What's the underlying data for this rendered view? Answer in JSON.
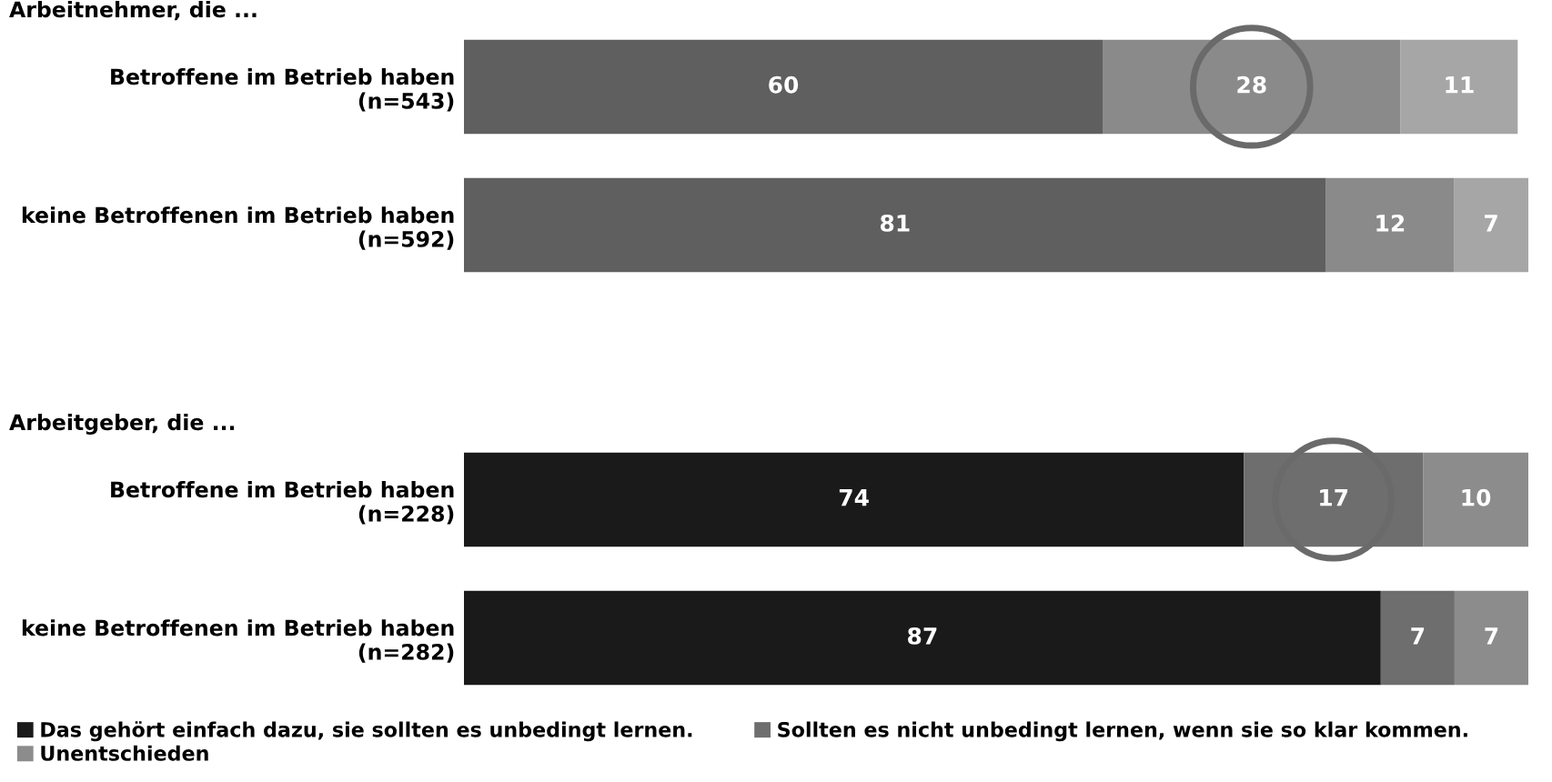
{
  "chart_data": [
    {
      "type": "bar",
      "orientation": "horizontal",
      "stacked": true,
      "title": "Arbeitnehmer, die ...",
      "categories": [
        "Betroffene im Betrieb haben\n(n=543)",
        "keine Betroffenen im Betrieb haben\n(n=592)"
      ],
      "series": [
        {
          "color": "#5f5f5f",
          "values": [
            60,
            81
          ]
        },
        {
          "color": "#8a8a8a",
          "values": [
            28,
            12
          ]
        },
        {
          "color": "#a6a6a6",
          "values": [
            11,
            7
          ]
        }
      ],
      "tick_labels": "y",
      "data_labels": true,
      "grid": false,
      "legend": false
    },
    {
      "type": "bar",
      "orientation": "horizontal",
      "stacked": true,
      "title": "Arbeitgeber, die ...",
      "categories": [
        "Betroffene im Betrieb haben\n(n=228)",
        "keine Betroffenen im Betrieb haben\n(n=282)"
      ],
      "series": [
        {
          "name": "Das gehört einfach dazu, sie sollten es unbedingt lernen.",
          "color": "#1a1a1a",
          "values": [
            74,
            87
          ]
        },
        {
          "name": "Sollten es nicht unbedingt lernen, wenn sie so klar kommen.",
          "color": "#6e6e6e",
          "values": [
            17,
            7
          ]
        },
        {
          "name": "Unentschieden",
          "color": "#8c8c8c",
          "values": [
            10,
            7
          ]
        }
      ],
      "tick_labels": "y",
      "data_labels": true,
      "grid": false,
      "legend": "bottom"
    }
  ]
}
